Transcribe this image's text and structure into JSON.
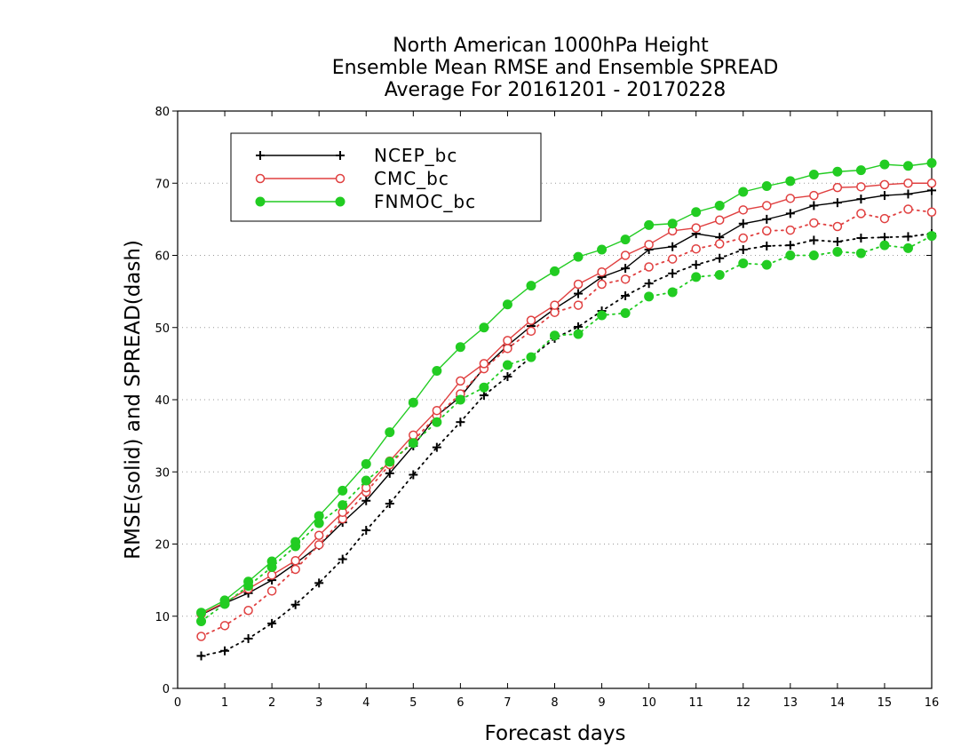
{
  "chart_data": {
    "type": "line",
    "title_lines": [
      "North American 1000hPa Height",
      "Ensemble Mean RMSE and Ensemble SPREAD",
      "Average For 20161201 - 20170228"
    ],
    "xlabel": "Forecast days",
    "ylabel": "RMSE(solid) and SPREAD(dash)",
    "xlim": [
      0,
      16
    ],
    "ylim": [
      0,
      80
    ],
    "x_ticks": [
      "0",
      "1",
      "2",
      "3",
      "4",
      "5",
      "6",
      "7",
      "8",
      "9",
      "10",
      "11",
      "12",
      "13",
      "14",
      "15",
      "16"
    ],
    "y_ticks": [
      "0",
      "10",
      "20",
      "30",
      "40",
      "50",
      "60",
      "70",
      "80"
    ],
    "grid": "horizontal-dotted",
    "legend_position": "top-left",
    "x": [
      0.5,
      1,
      1.5,
      2,
      2.5,
      3,
      3.5,
      4,
      4.5,
      5,
      5.5,
      6,
      6.5,
      7,
      7.5,
      8,
      8.5,
      9,
      9.5,
      10,
      10.5,
      11,
      11.5,
      12,
      12.5,
      13,
      13.5,
      14,
      14.5,
      15,
      15.5,
      16
    ],
    "series": [
      {
        "name": "NCEP_bc",
        "color": "#000000",
        "marker": "plus",
        "rmse": [
          10.2,
          11.8,
          13.2,
          15.0,
          17.3,
          19.8,
          23.0,
          26.0,
          29.8,
          33.6,
          37.8,
          40.4,
          44.4,
          47.5,
          50.2,
          52.6,
          54.7,
          57.0,
          58.2,
          60.8,
          61.2,
          63.0,
          62.5,
          64.4,
          65.0,
          65.8,
          66.9,
          67.3,
          67.8,
          68.3,
          68.5,
          69.0
        ],
        "spread": [
          4.5,
          5.2,
          6.9,
          9.0,
          11.6,
          14.6,
          17.9,
          21.9,
          25.6,
          29.6,
          33.4,
          36.9,
          40.6,
          43.2,
          45.9,
          48.5,
          50.1,
          52.3,
          54.4,
          56.1,
          57.5,
          58.7,
          59.6,
          60.8,
          61.3,
          61.4,
          62.1,
          61.9,
          62.4,
          62.5,
          62.6,
          63.0
        ]
      },
      {
        "name": "CMC_bc",
        "color": "#e04040",
        "marker": "open-circle",
        "rmse": [
          10.3,
          11.9,
          13.8,
          15.7,
          17.7,
          21.2,
          24.4,
          27.8,
          31.5,
          35.1,
          38.5,
          42.6,
          45.0,
          48.2,
          51.0,
          53.1,
          56.0,
          57.7,
          60.0,
          61.5,
          63.4,
          63.8,
          64.9,
          66.3,
          66.9,
          67.9,
          68.3,
          69.4,
          69.5,
          69.8,
          70.0,
          70.0
        ],
        "spread": [
          7.2,
          8.7,
          10.8,
          13.5,
          16.5,
          19.9,
          23.5,
          27.2,
          31.0,
          34.3,
          37.8,
          40.8,
          44.3,
          47.1,
          49.5,
          52.1,
          53.1,
          56.0,
          56.7,
          58.4,
          59.5,
          60.9,
          61.6,
          62.4,
          63.4,
          63.5,
          64.5,
          64.0,
          65.8,
          65.1,
          66.4,
          66.0
        ]
      },
      {
        "name": "FNMOC_bc",
        "color": "#22cc22",
        "marker": "filled-circle",
        "rmse": [
          10.5,
          12.2,
          14.8,
          17.6,
          20.3,
          23.9,
          27.4,
          31.1,
          35.5,
          39.6,
          44.0,
          47.3,
          50.0,
          53.2,
          55.8,
          57.8,
          59.8,
          60.8,
          62.2,
          64.2,
          64.4,
          66.0,
          66.9,
          68.8,
          69.6,
          70.3,
          71.2,
          71.6,
          71.8,
          72.6,
          72.4,
          72.8
        ],
        "spread": [
          9.3,
          11.7,
          14.2,
          16.8,
          19.7,
          22.9,
          25.4,
          28.8,
          31.4,
          34.0,
          36.9,
          40.0,
          41.7,
          44.8,
          45.9,
          48.9,
          49.1,
          51.7,
          52.0,
          54.3,
          54.9,
          57.0,
          57.3,
          58.9,
          58.7,
          60.0,
          60.0,
          60.5,
          60.3,
          61.4,
          61.0,
          62.7
        ]
      }
    ]
  }
}
